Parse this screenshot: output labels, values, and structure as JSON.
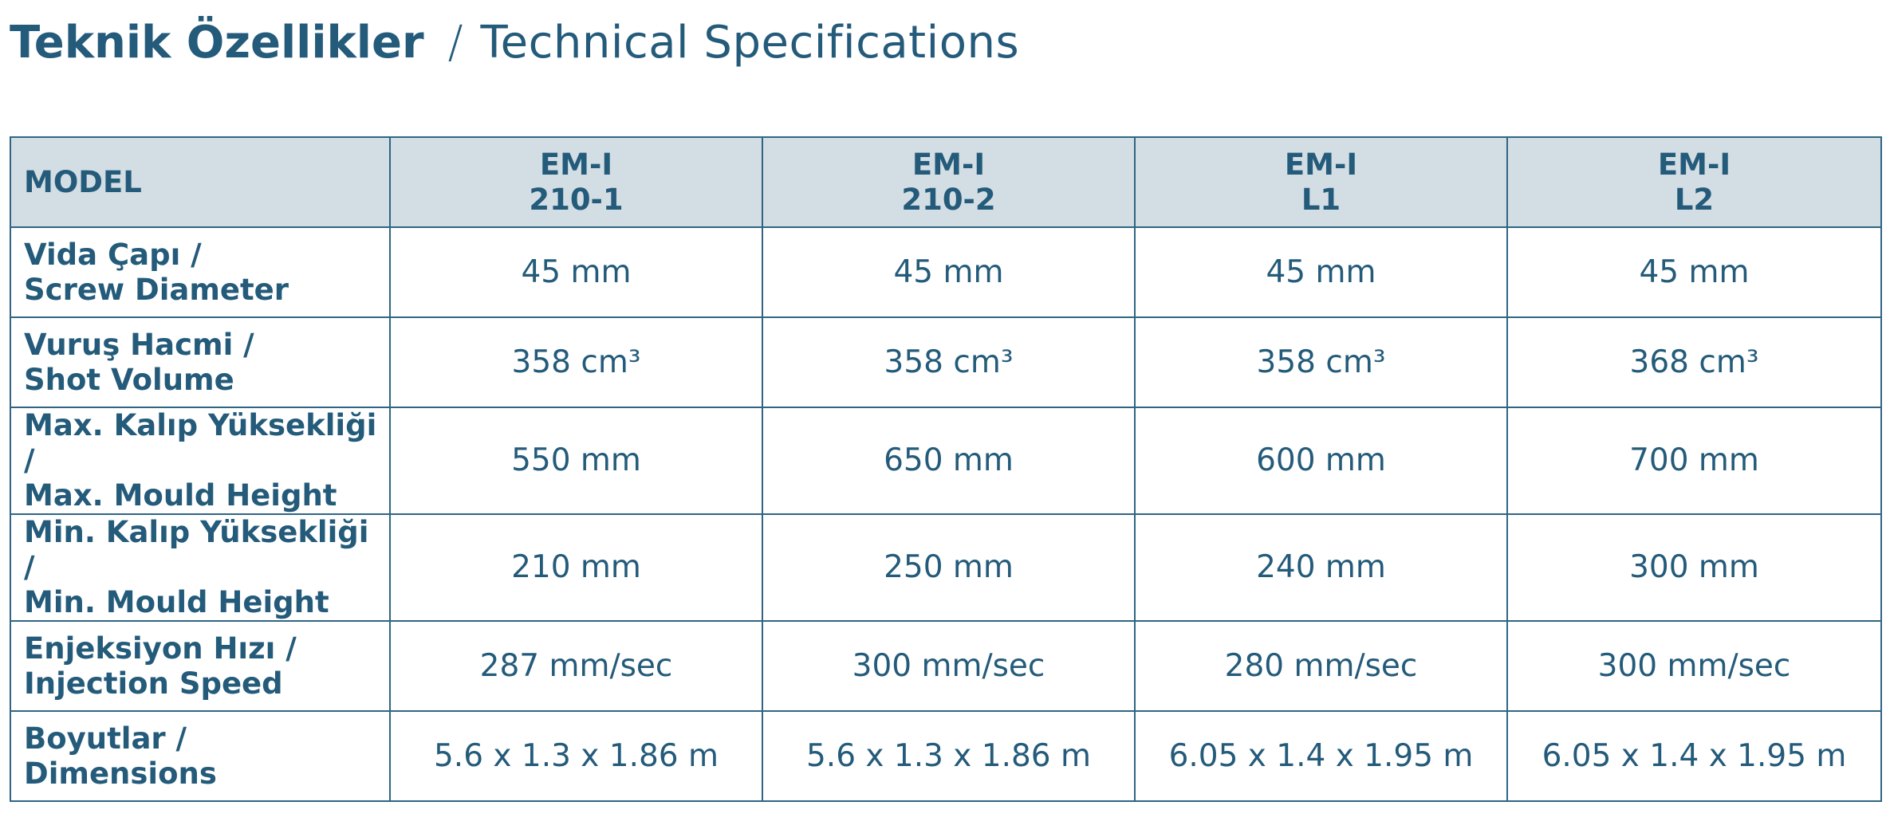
{
  "header": {
    "title": "Teknik Özellikler",
    "separator": "/",
    "subtitle": "Technical Specifications"
  },
  "table": {
    "columns": [
      [
        "MODEL"
      ],
      [
        "EM-I",
        "210-1"
      ],
      [
        "EM-I",
        "210-2"
      ],
      [
        "EM-I",
        "L1"
      ],
      [
        "EM-I",
        "L2"
      ]
    ],
    "rows": [
      [
        [
          "Vida Çapı /",
          "Screw Diameter"
        ],
        "45 mm",
        "45 mm",
        "45 mm",
        "45 mm"
      ],
      [
        [
          "Vuruş Hacmi /",
          "Shot Volume"
        ],
        "358 cm³",
        "358 cm³",
        "358 cm³",
        "368 cm³"
      ],
      [
        [
          "Max. Kalıp Yüksekliği /",
          "Max. Mould Height"
        ],
        "550 mm",
        "650 mm",
        "600 mm",
        "700 mm"
      ],
      [
        [
          "Min. Kalıp Yüksekliği /",
          "Min. Mould Height"
        ],
        "210 mm",
        "250 mm",
        "240 mm",
        "300 mm"
      ],
      [
        [
          "Enjeksiyon Hızı /",
          "Injection Speed"
        ],
        "287 mm/sec",
        "300 mm/sec",
        "280 mm/sec",
        "300 mm/sec"
      ],
      [
        [
          "Boyutlar /",
          "Dimensions"
        ],
        "5.6 x 1.3 x 1.86 m",
        "5.6 x 1.3 x 1.86 m",
        "6.05 x 1.4 x 1.95 m",
        "6.05 x 1.4 x 1.95 m"
      ]
    ]
  }
}
